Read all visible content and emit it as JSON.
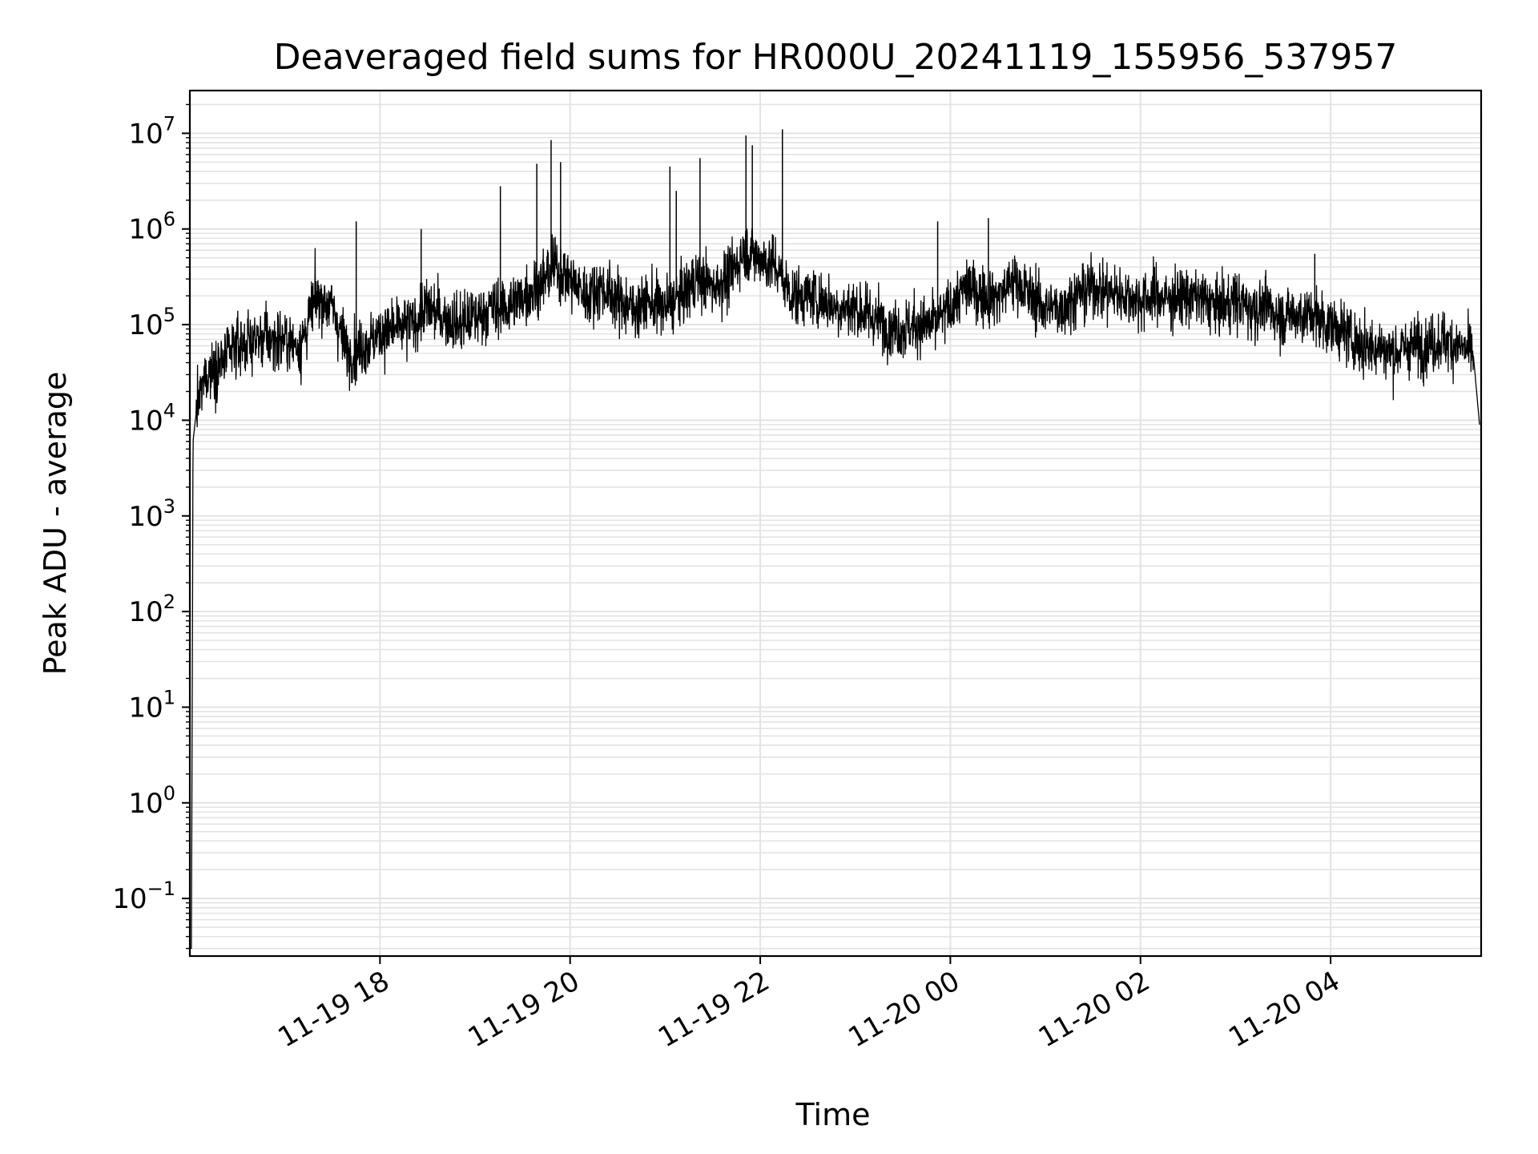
{
  "chart_data": {
    "type": "line",
    "title": "Deaveraged field sums for HR000U_20241119_155956_537957",
    "xlabel": "Time",
    "ylabel": "Peak ADU - average",
    "yscale": "log",
    "ylim": [
      0.025,
      28000000
    ],
    "xlim": [
      "2024-11-19 16:00",
      "2024-11-20 05:35"
    ],
    "grid": true,
    "x_ticks": [
      "11-19 18",
      "11-19 20",
      "11-19 22",
      "11-20 00",
      "11-20 02",
      "11-20 04"
    ],
    "y_ticks": [
      {
        "base": "10",
        "exp": "−1",
        "value": 0.1
      },
      {
        "base": "10",
        "exp": "0",
        "value": 1
      },
      {
        "base": "10",
        "exp": "1",
        "value": 10
      },
      {
        "base": "10",
        "exp": "2",
        "value": 100
      },
      {
        "base": "10",
        "exp": "3",
        "value": 1000
      },
      {
        "base": "10",
        "exp": "4",
        "value": 10000
      },
      {
        "base": "10",
        "exp": "5",
        "value": 100000
      },
      {
        "base": "10",
        "exp": "6",
        "value": 1000000
      },
      {
        "base": "10",
        "exp": "7",
        "value": 10000000
      }
    ],
    "series": [
      {
        "color": "#000000",
        "x": [
          "2024-11-19 16:01",
          "2024-11-19 16:02",
          "2024-11-19 16:04",
          "2024-11-19 16:10",
          "2024-11-19 16:20",
          "2024-11-19 16:30",
          "2024-11-19 16:40",
          "2024-11-19 16:50",
          "2024-11-19 17:00",
          "2024-11-19 17:10",
          "2024-11-19 17:20",
          "2024-11-19 17:30",
          "2024-11-19 17:40",
          "2024-11-19 17:50",
          "2024-11-19 18:00",
          "2024-11-19 18:10",
          "2024-11-19 18:20",
          "2024-11-19 18:30",
          "2024-11-19 18:40",
          "2024-11-19 18:50",
          "2024-11-19 19:00",
          "2024-11-19 19:10",
          "2024-11-19 19:20",
          "2024-11-19 19:30",
          "2024-11-19 19:40",
          "2024-11-19 19:50",
          "2024-11-19 20:00",
          "2024-11-19 20:10",
          "2024-11-19 20:20",
          "2024-11-19 20:30",
          "2024-11-19 20:40",
          "2024-11-19 20:50",
          "2024-11-19 21:00",
          "2024-11-19 21:10",
          "2024-11-19 21:20",
          "2024-11-19 21:30",
          "2024-11-19 21:40",
          "2024-11-19 21:50",
          "2024-11-19 22:00",
          "2024-11-19 22:10",
          "2024-11-19 22:20",
          "2024-11-19 22:30",
          "2024-11-19 22:40",
          "2024-11-19 22:50",
          "2024-11-19 23:00",
          "2024-11-19 23:10",
          "2024-11-19 23:20",
          "2024-11-19 23:30",
          "2024-11-19 23:40",
          "2024-11-19 23:50",
          "2024-11-20 00:00",
          "2024-11-20 00:10",
          "2024-11-20 00:20",
          "2024-11-20 00:30",
          "2024-11-20 00:40",
          "2024-11-20 00:50",
          "2024-11-20 01:00",
          "2024-11-20 01:10",
          "2024-11-20 01:20",
          "2024-11-20 01:30",
          "2024-11-20 01:40",
          "2024-11-20 01:50",
          "2024-11-20 02:00",
          "2024-11-20 02:10",
          "2024-11-20 02:20",
          "2024-11-20 02:30",
          "2024-11-20 02:40",
          "2024-11-20 02:50",
          "2024-11-20 03:00",
          "2024-11-20 03:10",
          "2024-11-20 03:20",
          "2024-11-20 03:30",
          "2024-11-20 03:40",
          "2024-11-20 03:50",
          "2024-11-20 04:00",
          "2024-11-20 04:10",
          "2024-11-20 04:20",
          "2024-11-20 04:30",
          "2024-11-20 04:40",
          "2024-11-20 04:50",
          "2024-11-20 05:00",
          "2024-11-20 05:10",
          "2024-11-20 05:20",
          "2024-11-20 05:30",
          "2024-11-20 05:34"
        ],
        "y": [
          0.03,
          6000,
          12000,
          30000,
          40000,
          60000,
          70000,
          70000,
          70000,
          60000,
          200000,
          150000,
          50000,
          60000,
          80000,
          90000,
          100000,
          150000,
          120000,
          100000,
          120000,
          150000,
          150000,
          200000,
          250000,
          400000,
          300000,
          200000,
          250000,
          180000,
          150000,
          170000,
          150000,
          200000,
          300000,
          250000,
          300000,
          600000,
          500000,
          400000,
          200000,
          200000,
          180000,
          150000,
          150000,
          120000,
          100000,
          90000,
          100000,
          100000,
          150000,
          250000,
          200000,
          200000,
          300000,
          200000,
          150000,
          150000,
          200000,
          250000,
          220000,
          200000,
          180000,
          200000,
          180000,
          200000,
          180000,
          150000,
          180000,
          150000,
          150000,
          120000,
          130000,
          120000,
          100000,
          80000,
          60000,
          60000,
          50000,
          60000,
          60000,
          70000,
          60000,
          50000,
          9000
        ],
        "spikes": [
          {
            "x": "2024-11-19 17:45",
            "y": 1200000
          },
          {
            "x": "2024-11-19 18:26",
            "y": 1000000
          },
          {
            "x": "2024-11-19 19:16",
            "y": 2800000
          },
          {
            "x": "2024-11-19 19:39",
            "y": 4800000
          },
          {
            "x": "2024-11-19 19:48",
            "y": 8500000
          },
          {
            "x": "2024-11-19 19:54",
            "y": 5000000
          },
          {
            "x": "2024-11-19 21:03",
            "y": 4500000
          },
          {
            "x": "2024-11-19 21:07",
            "y": 2500000
          },
          {
            "x": "2024-11-19 21:22",
            "y": 5500000
          },
          {
            "x": "2024-11-19 21:51",
            "y": 9500000
          },
          {
            "x": "2024-11-19 21:55",
            "y": 7500000
          },
          {
            "x": "2024-11-19 22:14",
            "y": 11000000
          },
          {
            "x": "2024-11-19 23:52",
            "y": 1200000
          },
          {
            "x": "2024-11-20 00:24",
            "y": 1300000
          },
          {
            "x": "2024-11-20 03:50",
            "y": 550000
          }
        ]
      }
    ]
  }
}
